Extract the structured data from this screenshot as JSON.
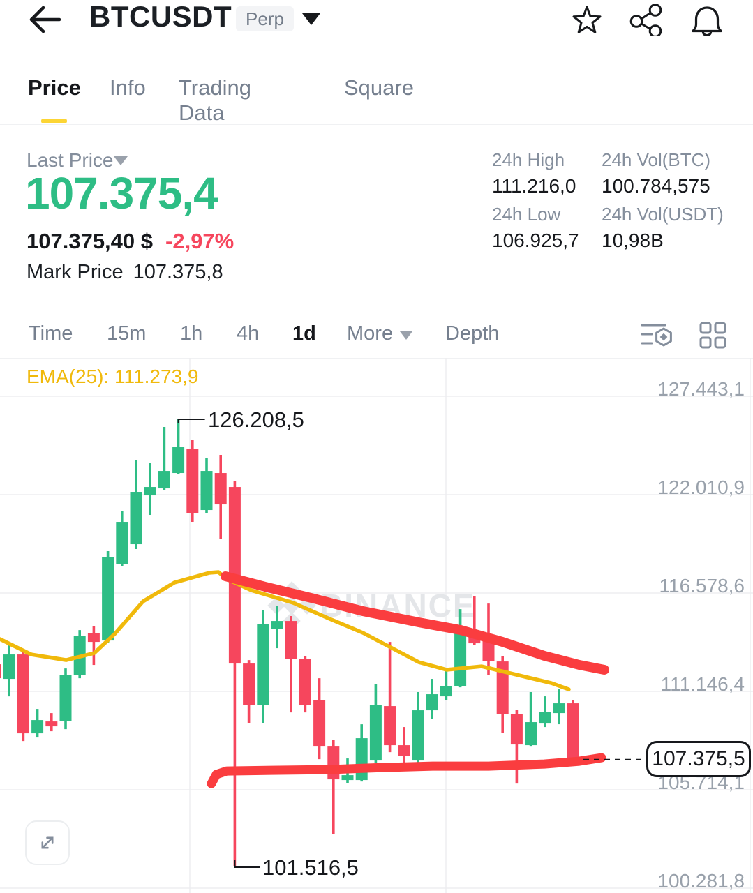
{
  "header": {
    "title": "BTCUSDT",
    "badge": "Perp"
  },
  "tabs": [
    {
      "label": "Price",
      "active": true
    },
    {
      "label": "Info",
      "active": false
    },
    {
      "label": "Trading Data",
      "active": false
    },
    {
      "label": "Square",
      "active": false
    }
  ],
  "price_panel": {
    "last_price_label": "Last Price",
    "last_price": "107.375,4",
    "fiat_price": "107.375,40 $",
    "change_pct": "-2,97%",
    "mark_price_label": "Mark Price",
    "mark_price": "107.375,8"
  },
  "stats": [
    {
      "label": "24h High",
      "value": "111.216,0"
    },
    {
      "label": "24h Vol(BTC)",
      "value": "100.784,575"
    },
    {
      "label": "24h Low",
      "value": "106.925,7"
    },
    {
      "label": "24h Vol(USDT)",
      "value": "10,98B"
    }
  ],
  "toolbar": {
    "items": [
      {
        "label": "Time",
        "active": false,
        "caret": false
      },
      {
        "label": "15m",
        "active": false,
        "caret": false
      },
      {
        "label": "1h",
        "active": false,
        "caret": false
      },
      {
        "label": "4h",
        "active": false,
        "caret": false
      },
      {
        "label": "1d",
        "active": true,
        "caret": false
      },
      {
        "label": "More",
        "active": false,
        "caret": true
      },
      {
        "label": "Depth",
        "active": false,
        "caret": false
      }
    ]
  },
  "chart_data": {
    "type": "candlestick",
    "pair": "BTCUSDT",
    "interval": "1d",
    "indicator_label": "EMA(25): 111.273,9",
    "watermark": "BINANCE",
    "y_axis": {
      "labels": [
        "127.443,1",
        "122.010,9",
        "116.578,6",
        "111.146,4",
        "105.714,1",
        "100.281,8"
      ],
      "prices": [
        127443.1,
        122010.9,
        116578.6,
        111146.4,
        105714.1,
        100281.8
      ]
    },
    "annotations": {
      "high": "126.208,5",
      "low": "101.516,5",
      "last": "107.375,5"
    },
    "high_candle_index": 13,
    "low_candle_index": 17,
    "candles": [
      [
        112646,
        112800,
        111761,
        111876
      ],
      [
        111837,
        113687,
        110874,
        113186
      ],
      [
        113186,
        113494,
        108408,
        108832
      ],
      [
        108832,
        110180,
        108601,
        109564
      ],
      [
        109487,
        109949,
        108947,
        109217
      ],
      [
        109525,
        112415,
        109063,
        112068
      ],
      [
        112068,
        114534,
        111876,
        114226
      ],
      [
        114380,
        114765,
        112608,
        113879
      ],
      [
        113956,
        118888,
        113840,
        118580
      ],
      [
        118195,
        121085,
        118041,
        120507
      ],
      [
        119274,
        123898,
        119004,
        122164
      ],
      [
        121971,
        123782,
        120893,
        122433
      ],
      [
        122356,
        125747,
        122241,
        123319
      ],
      [
        123204,
        126208.5,
        123127,
        124630
      ],
      [
        124553,
        125015,
        120507,
        121008
      ],
      [
        121162,
        124052,
        121008,
        123319
      ],
      [
        123204,
        124206,
        119582,
        121470
      ],
      [
        122433,
        122741,
        101516.5,
        112685
      ],
      [
        112685,
        112877,
        109410,
        110412
      ],
      [
        110412,
        115652,
        109410,
        114881
      ],
      [
        114611,
        115883,
        113532,
        115035
      ],
      [
        115035,
        115305,
        109988,
        112954
      ],
      [
        112954,
        113109,
        109988,
        110412
      ],
      [
        110682,
        111876,
        107407,
        108100
      ],
      [
        108100,
        108485,
        103283,
        106289
      ],
      [
        106251,
        107445,
        106096,
        106520
      ],
      [
        106251,
        109333,
        106174,
        108562
      ],
      [
        107330,
        111568,
        107214,
        110412
      ],
      [
        110335,
        113879,
        107792,
        108177
      ],
      [
        108177,
        109179,
        107214,
        107599
      ],
      [
        107330,
        111106,
        107214,
        110104
      ],
      [
        110104,
        111838,
        109641,
        110990
      ],
      [
        110874,
        112415,
        110682,
        111452
      ],
      [
        111452,
        115690,
        111375,
        114457
      ],
      [
        114457,
        116384,
        113687,
        113802
      ],
      [
        113995,
        115998,
        112068,
        112839
      ],
      [
        112800,
        113109,
        108871,
        109911
      ],
      [
        109911,
        110104,
        106058,
        108216
      ],
      [
        108177,
        111106,
        108100,
        109449
      ],
      [
        109371,
        110874,
        109179,
        110026
      ],
      [
        109949,
        111260,
        109333,
        110489
      ],
      [
        110489,
        110682,
        107214,
        107375.5
      ]
    ],
    "ema": [
      [
        0,
        114035
      ],
      [
        45,
        113186
      ],
      [
        95,
        112878
      ],
      [
        135,
        113263
      ],
      [
        165,
        114343
      ],
      [
        205,
        116115
      ],
      [
        250,
        117155
      ],
      [
        300,
        117695
      ],
      [
        313,
        117733
      ],
      [
        325,
        117348
      ],
      [
        360,
        116731
      ],
      [
        420,
        116038
      ],
      [
        470,
        115190
      ],
      [
        520,
        114381
      ],
      [
        560,
        113572
      ],
      [
        600,
        112762
      ],
      [
        640,
        112339
      ],
      [
        690,
        112531
      ],
      [
        740,
        112069
      ],
      [
        790,
        111606
      ],
      [
        815,
        111259
      ]
    ],
    "drawn_resistance": [
      [
        323,
        117502
      ],
      [
        380,
        116924
      ],
      [
        450,
        116269
      ],
      [
        520,
        115576
      ],
      [
        600,
        114959
      ],
      [
        660,
        114535
      ],
      [
        720,
        113880
      ],
      [
        780,
        113110
      ],
      [
        830,
        112609
      ],
      [
        866,
        112339
      ]
    ],
    "drawn_support": [
      [
        303,
        106056
      ],
      [
        310,
        106557
      ],
      [
        325,
        106750
      ],
      [
        390,
        106788
      ],
      [
        470,
        106827
      ],
      [
        550,
        106943
      ],
      [
        620,
        107020
      ],
      [
        700,
        107020
      ],
      [
        780,
        107135
      ],
      [
        830,
        107289
      ],
      [
        862,
        107482
      ]
    ],
    "colors": {
      "up": "#2EBD85",
      "down": "#F6465D",
      "ema": "#F0B90B",
      "drawn": "#FA3D3F"
    }
  }
}
